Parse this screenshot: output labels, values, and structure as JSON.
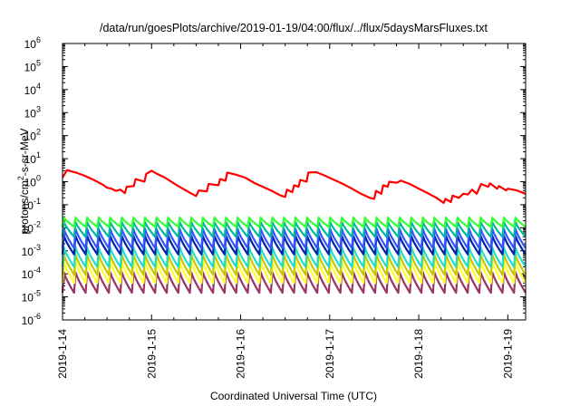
{
  "chart_data": {
    "type": "line",
    "title": "/data/run/goesPlots/archive/2019-01-19/04:00/flux/../flux/5daysMarsFluxes.txt",
    "xlabel": "Coordinated Universal Time (UTC)",
    "ylabel": "protons/cm²-s-sr-MeV",
    "ylabel_parts": {
      "prefix": "protons/cm",
      "sup": "2",
      "suffix": "-s-sr-MeV"
    },
    "yscale": "log",
    "ylim_exp": [
      -6,
      6
    ],
    "y_ticks": [
      {
        "base": "10",
        "exp": "6"
      },
      {
        "base": "10",
        "exp": "5"
      },
      {
        "base": "10",
        "exp": "4"
      },
      {
        "base": "10",
        "exp": "3"
      },
      {
        "base": "10",
        "exp": "2"
      },
      {
        "base": "10",
        "exp": "1"
      },
      {
        "base": "10",
        "exp": "0"
      },
      {
        "base": "10",
        "exp": "-1"
      },
      {
        "base": "10",
        "exp": "-2"
      },
      {
        "base": "10",
        "exp": "-3"
      },
      {
        "base": "10",
        "exp": "-4"
      },
      {
        "base": "10",
        "exp": "-5"
      },
      {
        "base": "10",
        "exp": "-6"
      }
    ],
    "x_ticks": [
      "2019-1-14",
      "2019-1-15",
      "2019-1-16",
      "2019-1-17",
      "2019-1-18",
      "2019-1-19"
    ],
    "xlim_days": [
      0,
      5.2
    ],
    "series": [
      {
        "color": "#ff0000",
        "values": [
          [
            0.0,
            1.5
          ],
          [
            0.05,
            3.2
          ],
          [
            0.15,
            2.5
          ],
          [
            0.25,
            1.8
          ],
          [
            0.35,
            1.2
          ],
          [
            0.45,
            0.75
          ],
          [
            0.5,
            0.55
          ],
          [
            0.55,
            0.5
          ],
          [
            0.6,
            0.4
          ],
          [
            0.65,
            0.45
          ],
          [
            0.7,
            0.32
          ],
          [
            0.72,
            0.6
          ],
          [
            0.8,
            0.65
          ],
          [
            0.82,
            1.3
          ],
          [
            0.92,
            1.0
          ],
          [
            0.94,
            2.2
          ],
          [
            1.0,
            3.0
          ],
          [
            1.05,
            2.3
          ],
          [
            1.15,
            1.5
          ],
          [
            1.25,
            0.85
          ],
          [
            1.35,
            0.5
          ],
          [
            1.45,
            0.3
          ],
          [
            1.5,
            0.24
          ],
          [
            1.53,
            0.42
          ],
          [
            1.62,
            0.38
          ],
          [
            1.64,
            0.8
          ],
          [
            1.75,
            0.7
          ],
          [
            1.77,
            1.3
          ],
          [
            1.83,
            1.1
          ],
          [
            1.85,
            2.5
          ],
          [
            1.95,
            2.0
          ],
          [
            2.05,
            1.5
          ],
          [
            2.15,
            0.9
          ],
          [
            2.25,
            0.6
          ],
          [
            2.35,
            0.4
          ],
          [
            2.45,
            0.25
          ],
          [
            2.5,
            0.22
          ],
          [
            2.52,
            0.45
          ],
          [
            2.58,
            0.35
          ],
          [
            2.6,
            0.7
          ],
          [
            2.65,
            0.6
          ],
          [
            2.67,
            1.2
          ],
          [
            2.74,
            1.0
          ],
          [
            2.76,
            2.5
          ],
          [
            2.85,
            2.6
          ],
          [
            2.95,
            1.8
          ],
          [
            3.05,
            1.2
          ],
          [
            3.15,
            0.8
          ],
          [
            3.25,
            0.5
          ],
          [
            3.35,
            0.3
          ],
          [
            3.45,
            0.2
          ],
          [
            3.5,
            0.18
          ],
          [
            3.52,
            0.4
          ],
          [
            3.58,
            0.3
          ],
          [
            3.6,
            0.7
          ],
          [
            3.65,
            0.6
          ],
          [
            3.67,
            1.0
          ],
          [
            3.75,
            0.9
          ],
          [
            3.8,
            1.1
          ],
          [
            3.9,
            0.8
          ],
          [
            4.0,
            0.5
          ],
          [
            4.1,
            0.32
          ],
          [
            4.2,
            0.2
          ],
          [
            4.28,
            0.12
          ],
          [
            4.3,
            0.18
          ],
          [
            4.36,
            0.13
          ],
          [
            4.38,
            0.25
          ],
          [
            4.45,
            0.2
          ],
          [
            4.5,
            0.3
          ],
          [
            4.55,
            0.28
          ],
          [
            4.6,
            0.45
          ],
          [
            4.65,
            0.3
          ],
          [
            4.7,
            0.8
          ],
          [
            4.78,
            0.6
          ],
          [
            4.8,
            0.85
          ],
          [
            4.88,
            0.5
          ],
          [
            4.9,
            0.65
          ],
          [
            4.98,
            0.42
          ],
          [
            5.0,
            0.5
          ],
          [
            5.1,
            0.42
          ],
          [
            5.2,
            0.3
          ]
        ]
      },
      {
        "color": "#33ff33",
        "top": 0.028,
        "bottom": 0.011
      },
      {
        "color": "#00b8a0",
        "top": 0.018,
        "bottom": 0.004
      },
      {
        "color": "#3355ff",
        "top": 0.009,
        "bottom": 0.0013
      },
      {
        "color": "#0022aa",
        "top": 0.0045,
        "bottom": 0.0007
      },
      {
        "color": "#22ddcc",
        "top": 0.0014,
        "bottom": 0.0002
      },
      {
        "color": "#c8c800",
        "top": 0.0007,
        "bottom": 9e-05
      },
      {
        "color": "#ffff33",
        "top": 0.00035,
        "bottom": 4e-05
      },
      {
        "color": "#993366",
        "top": 0.00012,
        "bottom": 1.5e-05
      }
    ],
    "oscillation": {
      "cycles": 40,
      "rise_fraction": 0.12
    },
    "grid": false,
    "legend": "none"
  }
}
